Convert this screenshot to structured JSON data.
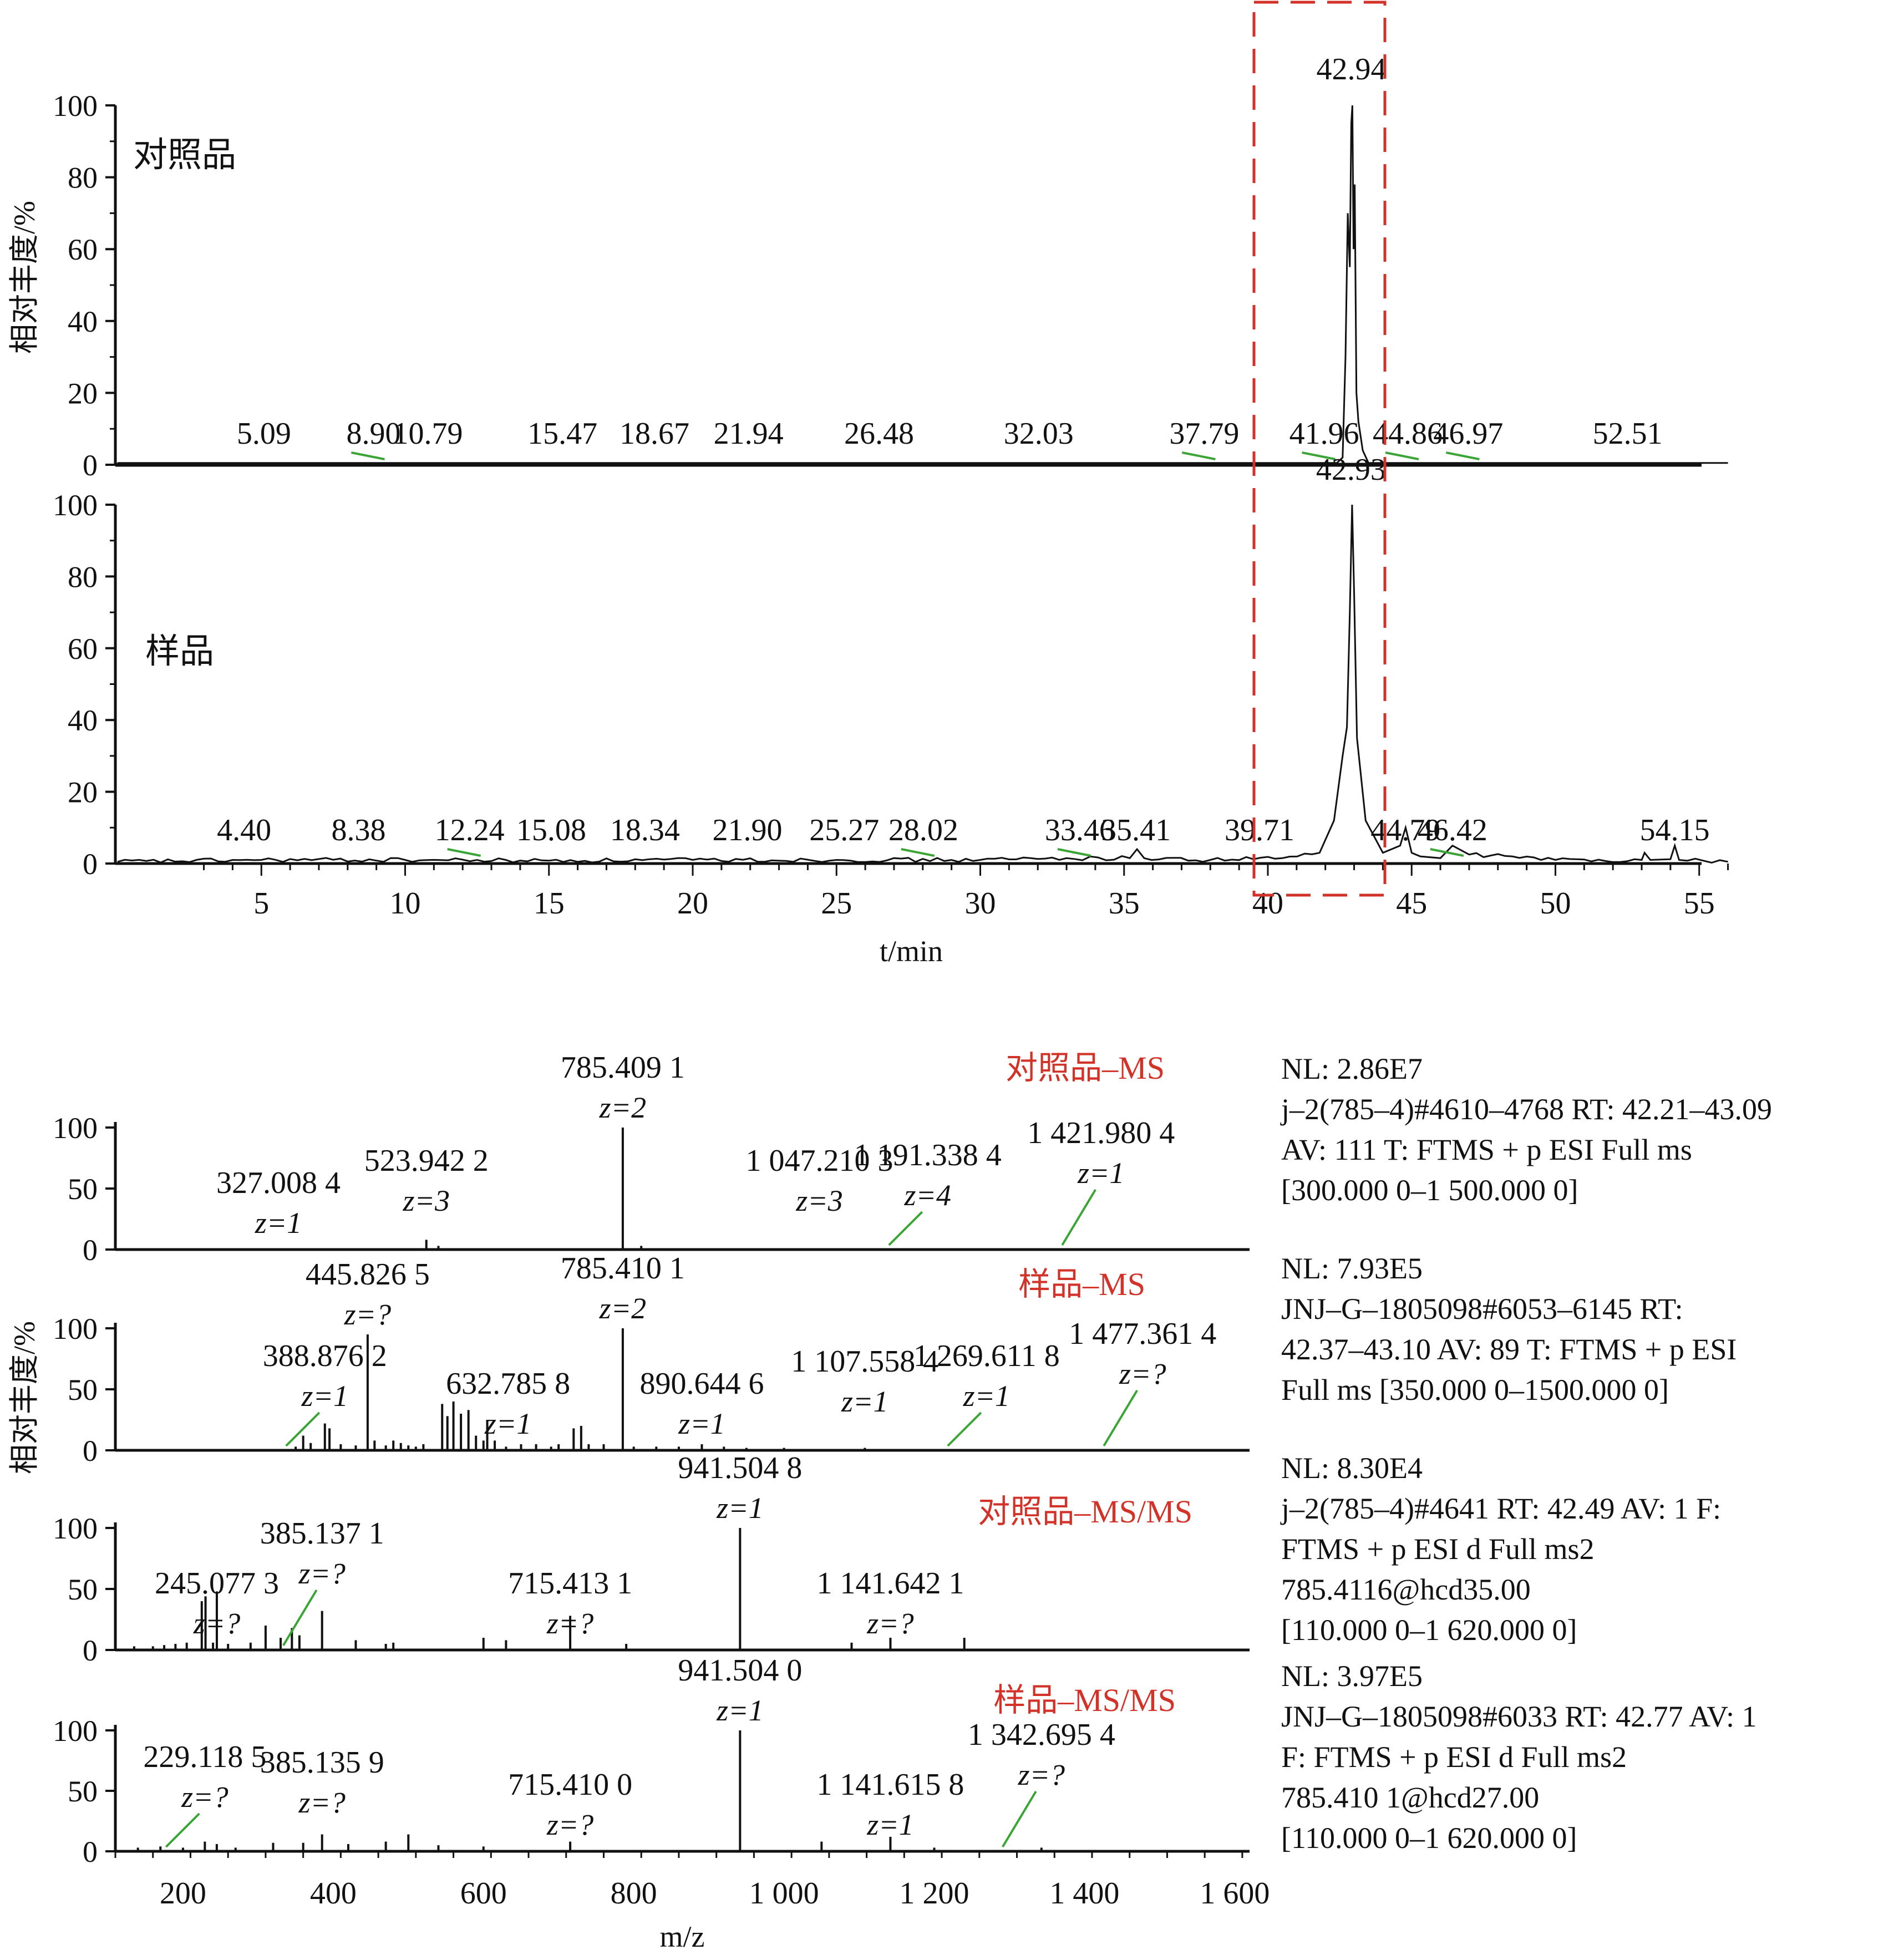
{
  "colors": {
    "trace": "#111111",
    "annotation_line": "#3aa535",
    "highlight": "#d23228",
    "axis": "#111111"
  },
  "chromatogram": {
    "ylabel": "相对丰度/%",
    "xlabel": "t/min",
    "x_ticks": [
      "5",
      "10",
      "15",
      "20",
      "25",
      "30",
      "35",
      "40",
      "45",
      "50",
      "55"
    ],
    "y_ticks": [
      "0",
      "20",
      "40",
      "60",
      "80",
      "100"
    ],
    "highlight_box": "dashed",
    "panels": {
      "reference": {
        "label": "对照品"
      },
      "sample": {
        "label": "样品"
      }
    }
  },
  "ms": {
    "ylabel": "相对丰度/%",
    "xlabel": "m/z",
    "x_ticks": [
      "200",
      "400",
      "600",
      "800",
      "1 000",
      "1 200",
      "1 400",
      "1 600"
    ],
    "y_ticks": [
      "0",
      "50",
      "100"
    ],
    "panels": {
      "ref_ms": {
        "title": "对照品–MS",
        "info": [
          "NL: 2.86E7",
          "j–2(785–4)#4610–4768  RT: 42.21–43.09",
          "AV: 111  T: FTMS + p ESI Full ms",
          "[300.000 0–1 500.000 0]"
        ]
      },
      "smp_ms": {
        "title": "样品–MS",
        "info": [
          "NL: 7.93E5",
          "JNJ–G–1805098#6053–6145  RT:",
          "42.37–43.10  AV: 89  T: FTMS + p ESI",
          "Full ms [350.000 0–1500.000 0]"
        ]
      },
      "ref_msms": {
        "title": "对照品–MS/MS",
        "info": [
          "NL: 8.30E4",
          "j–2(785–4)#4641  RT: 42.49  AV: 1  F:",
          "FTMS + p ESI d Full ms2",
          "785.4116@hcd35.00",
          "[110.000 0–1 620.000 0]"
        ]
      },
      "smp_msms": {
        "title": "样品–MS/MS",
        "info": [
          "NL: 3.97E5",
          "JNJ–G–1805098#6033  RT: 42.77  AV: 1",
          "F: FTMS + p ESI d Full ms2",
          "785.410 1@hcd27.00",
          "[110.000 0–1 620.000 0]"
        ]
      }
    }
  },
  "chart_data": [
    {
      "type": "line",
      "title": "对照品",
      "xlabel": "t/min",
      "ylabel": "相对丰度/%",
      "xlim": [
        0,
        56
      ],
      "ylim": [
        0,
        100
      ],
      "grid": false,
      "x": [
        0,
        42.4,
        42.6,
        42.7,
        42.78,
        42.85,
        42.9,
        42.94,
        42.98,
        43.02,
        43.08,
        43.15,
        43.3,
        43.5,
        56
      ],
      "y": [
        0.5,
        0.5,
        2,
        30,
        70,
        55,
        95,
        100,
        60,
        78,
        20,
        12,
        4,
        0.5,
        0.5
      ],
      "annotations": [
        {
          "rt": "5.09",
          "x": 5.09,
          "y": 0.5,
          "leader": false
        },
        {
          "rt": "8.90",
          "x": 8.9,
          "y": 0.5,
          "leader": true
        },
        {
          "rt": "10.79",
          "x": 10.79,
          "y": 0.5,
          "leader": false
        },
        {
          "rt": "15.47",
          "x": 15.47,
          "y": 0.5,
          "leader": false
        },
        {
          "rt": "18.67",
          "x": 18.67,
          "y": 0.5,
          "leader": false
        },
        {
          "rt": "21.94",
          "x": 21.94,
          "y": 0.5,
          "leader": false
        },
        {
          "rt": "26.48",
          "x": 26.48,
          "y": 0.5,
          "leader": false
        },
        {
          "rt": "32.03",
          "x": 32.03,
          "y": 0.5,
          "leader": false
        },
        {
          "rt": "37.79",
          "x": 37.79,
          "y": 0.5,
          "leader": true
        },
        {
          "rt": "41.96",
          "x": 41.96,
          "y": 0.5,
          "leader": true
        },
        {
          "rt": "44.86",
          "x": 44.86,
          "y": 0.5,
          "leader": true
        },
        {
          "rt": "46.97",
          "x": 46.97,
          "y": 0.5,
          "leader": true
        },
        {
          "rt": "52.51",
          "x": 52.51,
          "y": 0.5,
          "leader": false
        }
      ],
      "apex_label": "42.94"
    },
    {
      "type": "line",
      "title": "样品",
      "xlabel": "t/min",
      "ylabel": "相对丰度/%",
      "xlim": [
        0,
        56
      ],
      "ylim": [
        0,
        100
      ],
      "grid": false,
      "x": [
        0,
        5,
        10,
        15,
        20,
        25,
        30,
        33,
        35.2,
        35.45,
        35.7,
        38,
        40.5,
        41.8,
        42.3,
        42.6,
        42.75,
        42.85,
        42.93,
        43.0,
        43.1,
        43.4,
        44.0,
        44.6,
        44.79,
        45.0,
        45.3,
        46.0,
        46.42,
        47,
        48.5,
        50,
        53,
        53.1,
        53.3,
        54.0,
        54.15,
        54.3,
        56
      ],
      "y": [
        0.5,
        1,
        1,
        0.8,
        1,
        1,
        1,
        1.5,
        1.5,
        4,
        1.5,
        1,
        1.5,
        3,
        12,
        30,
        38,
        70,
        100,
        75,
        35,
        12,
        3,
        5,
        10,
        3,
        2,
        1.5,
        5,
        2.5,
        2,
        1,
        1,
        3,
        1,
        1.2,
        5,
        1,
        0.5
      ],
      "annotations": [
        {
          "rt": "4.40",
          "x": 4.4,
          "y": 1,
          "leader": false
        },
        {
          "rt": "8.38",
          "x": 8.38,
          "y": 1,
          "leader": false
        },
        {
          "rt": "12.24",
          "x": 12.24,
          "y": 1,
          "leader": true
        },
        {
          "rt": "15.08",
          "x": 15.08,
          "y": 1,
          "leader": false
        },
        {
          "rt": "18.34",
          "x": 18.34,
          "y": 1,
          "leader": false
        },
        {
          "rt": "21.90",
          "x": 21.9,
          "y": 1,
          "leader": false
        },
        {
          "rt": "25.27",
          "x": 25.27,
          "y": 1,
          "leader": false
        },
        {
          "rt": "28.02",
          "x": 28.02,
          "y": 1,
          "leader": true
        },
        {
          "rt": "33.46",
          "x": 33.46,
          "y": 1.5,
          "leader": true
        },
        {
          "rt": "35.41",
          "x": 35.41,
          "y": 4,
          "leader": false
        },
        {
          "rt": "39.71",
          "x": 39.71,
          "y": 1.5,
          "leader": false
        },
        {
          "rt": "44.79",
          "x": 44.79,
          "y": 10,
          "leader": false
        },
        {
          "rt": "46.42",
          "x": 46.42,
          "y": 5,
          "leader": true
        },
        {
          "rt": "54.15",
          "x": 54.15,
          "y": 5,
          "leader": false
        }
      ],
      "apex_label": "42.93"
    },
    {
      "type": "bar",
      "title": "对照品–MS",
      "xlabel": "m/z",
      "ylabel": "相对丰度/%",
      "xlim": [
        110,
        1620
      ],
      "ylim": [
        0,
        100
      ],
      "peaks": [
        [
          295,
          1
        ],
        [
          327,
          1
        ],
        [
          350,
          1
        ],
        [
          380,
          1
        ],
        [
          420,
          1
        ],
        [
          460,
          1
        ],
        [
          500,
          1
        ],
        [
          523.94,
          8
        ],
        [
          540,
          3
        ],
        [
          600,
          1
        ],
        [
          650,
          1
        ],
        [
          700,
          1
        ],
        [
          750,
          1
        ],
        [
          785.41,
          100
        ],
        [
          810,
          3
        ],
        [
          870,
          1
        ],
        [
          950,
          1
        ],
        [
          1047.21,
          1
        ],
        [
          1100,
          1
        ],
        [
          1191.34,
          1
        ],
        [
          1250,
          1
        ],
        [
          1300,
          1
        ],
        [
          1350,
          1
        ],
        [
          1421.98,
          1
        ],
        [
          1500,
          1
        ]
      ],
      "labels": [
        {
          "mz": "327.008 4",
          "z": "z=1",
          "x": 327,
          "leader": false
        },
        {
          "mz": "523.942 2",
          "z": "z=3",
          "x": 523.94,
          "leader": false
        },
        {
          "mz": "785.409 1",
          "z": "z=2",
          "x": 785.41,
          "leader": false
        },
        {
          "mz": "1 047.210 3",
          "z": "z=3",
          "x": 1047.21,
          "leader": false
        },
        {
          "mz": "1 191.338 4",
          "z": "z=4",
          "x": 1191.34,
          "leader": true
        },
        {
          "mz": "1 421.980 4",
          "z": "z=1",
          "x": 1421.98,
          "leader": true
        }
      ]
    },
    {
      "type": "bar",
      "title": "样品–MS",
      "xlabel": "m/z",
      "ylabel": "相对丰度/%",
      "xlim": [
        110,
        1620
      ],
      "ylim": [
        0,
        100
      ],
      "peaks": [
        [
          350,
          3
        ],
        [
          360,
          12
        ],
        [
          370,
          6
        ],
        [
          388.88,
          22
        ],
        [
          395,
          18
        ],
        [
          410,
          5
        ],
        [
          430,
          4
        ],
        [
          445.83,
          95
        ],
        [
          455,
          8
        ],
        [
          470,
          4
        ],
        [
          480,
          8
        ],
        [
          490,
          6
        ],
        [
          500,
          4
        ],
        [
          510,
          3
        ],
        [
          520,
          5
        ],
        [
          545,
          38
        ],
        [
          552,
          28
        ],
        [
          560,
          40
        ],
        [
          570,
          30
        ],
        [
          580,
          33
        ],
        [
          590,
          12
        ],
        [
          600,
          8
        ],
        [
          605,
          25
        ],
        [
          615,
          8
        ],
        [
          630,
          3
        ],
        [
          650,
          5
        ],
        [
          670,
          5
        ],
        [
          690,
          3
        ],
        [
          700,
          5
        ],
        [
          720,
          18
        ],
        [
          730,
          20
        ],
        [
          740,
          5
        ],
        [
          760,
          5
        ],
        [
          785.41,
          100
        ],
        [
          800,
          3
        ],
        [
          830,
          3
        ],
        [
          860,
          3
        ],
        [
          890.64,
          5
        ],
        [
          920,
          3
        ],
        [
          950,
          2
        ],
        [
          1000,
          2
        ],
        [
          1107.56,
          2
        ],
        [
          1200,
          1
        ],
        [
          1269.61,
          1
        ],
        [
          1350,
          1
        ],
        [
          1477.36,
          1
        ]
      ],
      "labels": [
        {
          "mz": "388.876 2",
          "z": "z=1",
          "x": 388.88,
          "leader": true
        },
        {
          "mz": "445.826 5",
          "z": "z=?",
          "x": 445.83,
          "leader": false
        },
        {
          "mz": "632.785 8",
          "z": "z=1",
          "x": 632.79,
          "leader": false
        },
        {
          "mz": "785.410 1",
          "z": "z=2",
          "x": 785.41,
          "leader": false
        },
        {
          "mz": "890.644 6",
          "z": "z=1",
          "x": 890.64,
          "leader": false
        },
        {
          "mz": "1 107.558 4",
          "z": "z=1",
          "x": 1107.56,
          "leader": false
        },
        {
          "mz": "1 269.611 8",
          "z": "z=1",
          "x": 1269.61,
          "leader": true
        },
        {
          "mz": "1 477.361 4",
          "z": "z=?",
          "x": 1477.36,
          "leader": true
        }
      ]
    },
    {
      "type": "bar",
      "title": "对照品–MS/MS",
      "xlabel": "m/z",
      "ylabel": "相对丰度/%",
      "xlim": [
        110,
        1620
      ],
      "ylim": [
        0,
        100
      ],
      "peaks": [
        [
          135,
          3
        ],
        [
          160,
          3
        ],
        [
          175,
          4
        ],
        [
          190,
          5
        ],
        [
          205,
          6
        ],
        [
          225,
          40
        ],
        [
          230,
          44
        ],
        [
          240,
          6
        ],
        [
          245.08,
          48
        ],
        [
          260,
          5
        ],
        [
          290,
          6
        ],
        [
          310,
          20
        ],
        [
          330,
          10
        ],
        [
          345,
          18
        ],
        [
          355,
          12
        ],
        [
          385.14,
          32
        ],
        [
          430,
          8
        ],
        [
          470,
          5
        ],
        [
          480,
          6
        ],
        [
          600,
          10
        ],
        [
          630,
          8
        ],
        [
          715.41,
          28
        ],
        [
          790,
          5
        ],
        [
          941.5,
          100
        ],
        [
          1090,
          6
        ],
        [
          1141.64,
          10
        ],
        [
          1240,
          10
        ]
      ],
      "labels": [
        {
          "mz": "245.077 3",
          "z": "z=?",
          "x": 245.08,
          "leader": false
        },
        {
          "mz": "385.137 1",
          "z": "z=?",
          "x": 385.14,
          "leader": true
        },
        {
          "mz": "715.413 1",
          "z": "z=?",
          "x": 715.41,
          "leader": false
        },
        {
          "mz": "941.504 8",
          "z": "z=1",
          "x": 941.5,
          "leader": false
        },
        {
          "mz": "1 141.642 1",
          "z": "z=?",
          "x": 1141.64,
          "leader": false
        }
      ]
    },
    {
      "type": "bar",
      "title": "样品–MS/MS",
      "xlabel": "m/z",
      "ylabel": "相对丰度/%",
      "xlim": [
        110,
        1620
      ],
      "ylim": [
        0,
        100
      ],
      "peaks": [
        [
          140,
          3
        ],
        [
          170,
          4
        ],
        [
          200,
          3
        ],
        [
          229.12,
          8
        ],
        [
          245,
          6
        ],
        [
          270,
          3
        ],
        [
          320,
          7
        ],
        [
          360,
          7
        ],
        [
          385.14,
          14
        ],
        [
          420,
          6
        ],
        [
          470,
          8
        ],
        [
          500,
          14
        ],
        [
          540,
          5
        ],
        [
          600,
          4
        ],
        [
          715.41,
          8
        ],
        [
          941.5,
          100
        ],
        [
          1050,
          8
        ],
        [
          1141.62,
          12
        ],
        [
          1200,
          3
        ],
        [
          1342.7,
          3
        ]
      ],
      "labels": [
        {
          "mz": "229.118 5",
          "z": "z=?",
          "x": 229.12,
          "leader": true
        },
        {
          "mz": "385.135 9",
          "z": "z=?",
          "x": 385.14,
          "leader": false
        },
        {
          "mz": "715.410 0",
          "z": "z=?",
          "x": 715.41,
          "leader": false
        },
        {
          "mz": "941.504 0",
          "z": "z=1",
          "x": 941.5,
          "leader": false
        },
        {
          "mz": "1 141.615 8",
          "z": "z=1",
          "x": 1141.62,
          "leader": false
        },
        {
          "mz": "1 342.695 4",
          "z": "z=?",
          "x": 1342.7,
          "leader": true
        }
      ]
    }
  ]
}
